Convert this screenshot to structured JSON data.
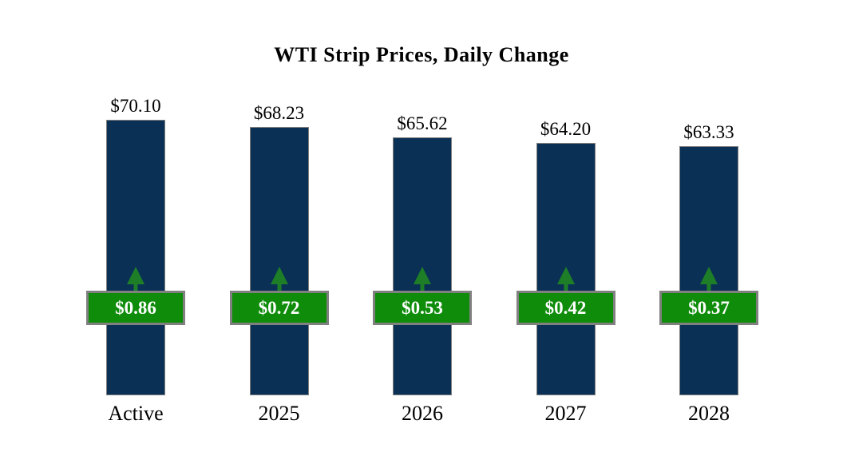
{
  "chart_data": {
    "type": "bar",
    "title": "WTI Strip Prices, Daily Change",
    "categories": [
      "Active",
      "2025",
      "2026",
      "2027",
      "2028"
    ],
    "series": [
      {
        "name": "strip_price",
        "values": [
          70.1,
          68.23,
          65.62,
          64.2,
          63.33
        ],
        "labels": [
          "$70.10",
          "$68.23",
          "$65.62",
          "$64.20",
          "$63.33"
        ]
      },
      {
        "name": "daily_change",
        "direction": "up",
        "values": [
          0.86,
          0.72,
          0.53,
          0.42,
          0.37
        ],
        "labels": [
          "$0.86",
          "$0.72",
          "$0.53",
          "$0.42",
          "$0.37"
        ]
      }
    ],
    "ylim": [
      0,
      71
    ],
    "axes_visible": false,
    "grid": false,
    "legend": "none",
    "colors": {
      "bar_fill": "#0A3055",
      "bar_border": "#7F7F7F",
      "badge_fill": "#0E8C0A",
      "badge_border": "#808080",
      "badge_text": "#FFFFFF",
      "arrow": "#1E7E28",
      "title_text": "#000000",
      "value_text": "#000000",
      "category_text": "#000000",
      "background": "#FFFFFF"
    }
  }
}
